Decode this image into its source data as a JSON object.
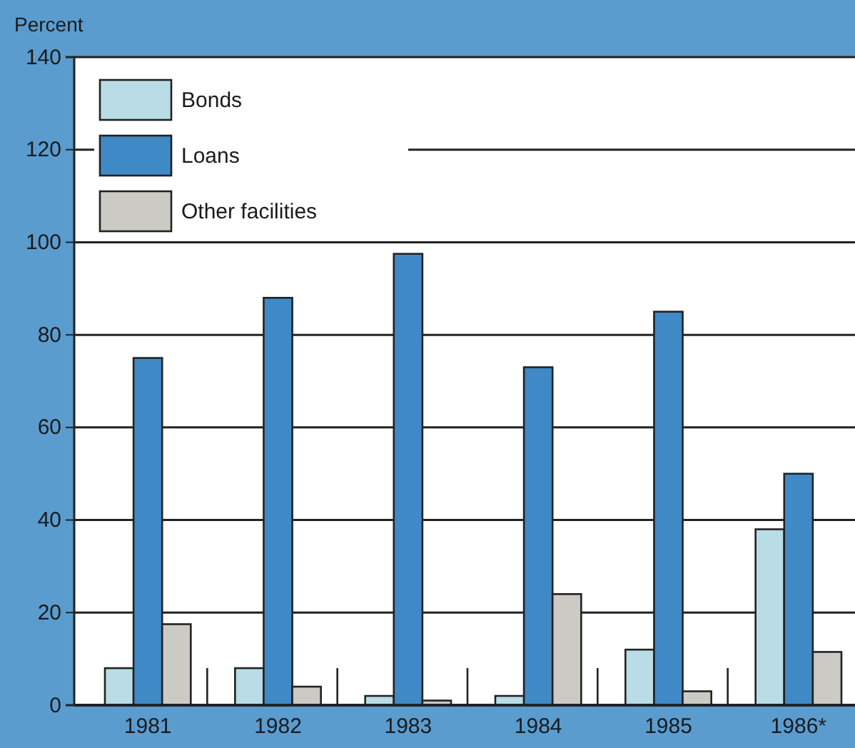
{
  "chart_data": {
    "type": "bar",
    "ylabel": "Percent",
    "categories": [
      "1981",
      "1982",
      "1983",
      "1984",
      "1985",
      "1986*"
    ],
    "series": [
      {
        "name": "Bonds",
        "color": "#b9dce6",
        "values": [
          8,
          8,
          2,
          2,
          12,
          38
        ]
      },
      {
        "name": "Loans",
        "color": "#3f8ac6",
        "values": [
          75,
          88,
          97.5,
          73,
          85,
          50
        ]
      },
      {
        "name": "Other facilities",
        "color": "#cbcac5",
        "values": [
          17.5,
          4,
          1,
          24,
          3,
          11.5
        ]
      }
    ],
    "ylim": [
      0,
      140
    ],
    "yticks": [
      0,
      20,
      40,
      60,
      80,
      100,
      120,
      140
    ],
    "grid": "y",
    "legend": "top left"
  }
}
